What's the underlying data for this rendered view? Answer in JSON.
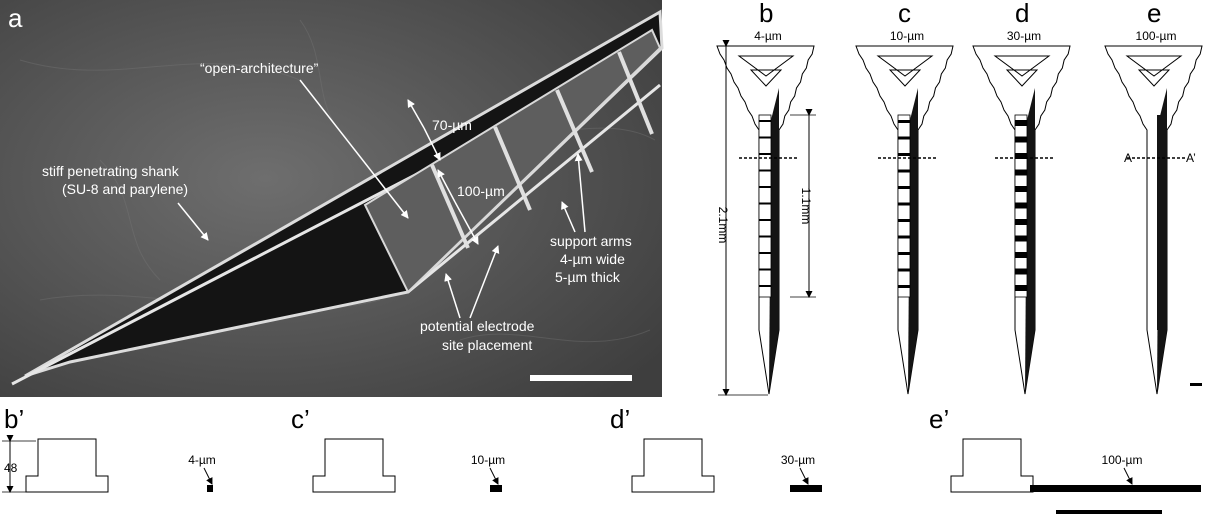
{
  "panel_a": {
    "letter": "a",
    "label_open_arch": "“open-architecture”",
    "label_70": "70-µm",
    "label_100": "100-µm",
    "label_shank_line1": "stiff penetrating shank",
    "label_shank_line2": "(SU-8 and parylene)",
    "label_support_line1": "support arms",
    "label_support_line2": "4-µm wide",
    "label_support_line3": "5-µm thick",
    "label_electrode_line1": "potential electrode",
    "label_electrode_line2": "site placement"
  },
  "probes": [
    {
      "letter": "b",
      "width_label": "4-µm"
    },
    {
      "letter": "c",
      "width_label": "10-µm"
    },
    {
      "letter": "d",
      "width_label": "30-µm"
    },
    {
      "letter": "e",
      "width_label": "100-µm"
    }
  ],
  "length_label": "2.1mm",
  "window_label": "1.1mm",
  "section_a_label": "A",
  "section_a_prime_label": "A’",
  "cross_sections": [
    {
      "letter": "b’",
      "width_label": "4-µm"
    },
    {
      "letter": "c’",
      "width_label": "10-µm"
    },
    {
      "letter": "d’",
      "width_label": "30-µm"
    },
    {
      "letter": "e’",
      "width_label": "100-µm"
    }
  ],
  "height_label": "48",
  "colors": {
    "sem_background": "#5a5a5a",
    "shank_fill": "#141414",
    "ink": "#000000"
  }
}
